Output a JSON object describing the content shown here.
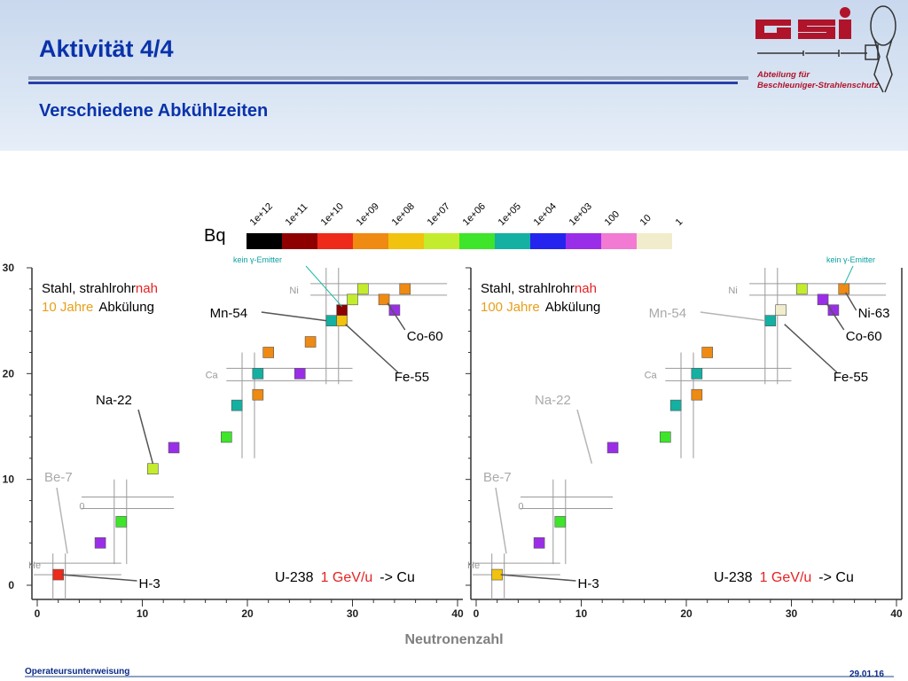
{
  "slide": {
    "title": "Aktivität  4/4",
    "subtitle": "Verschiedene Abkühlzeiten",
    "dept_line1": "Abteilung für",
    "dept_line2": "Beschleuniger-Strahlenschutz",
    "footer_left": "Operateursunterweisung",
    "footer_right": "29.01.16"
  },
  "colors": {
    "title": "#0a33aa",
    "highlight_red": "#e52222",
    "highlight_orange": "#e7a01a"
  },
  "legend": {
    "unit_label": "Bq",
    "gamma_note": "kein γ-Emitter",
    "bins": [
      {
        "label": "1e+12",
        "color": "#000000"
      },
      {
        "label": "1e+11",
        "color": "#8e0000"
      },
      {
        "label": "1e+10",
        "color": "#ee2a1a"
      },
      {
        "label": "1e+09",
        "color": "#ef8a12"
      },
      {
        "label": "1e+08",
        "color": "#f1c20e"
      },
      {
        "label": "1e+07",
        "color": "#c4ec2e"
      },
      {
        "label": "1e+06",
        "color": "#3ee52a"
      },
      {
        "label": "1e+05",
        "color": "#14b0a2"
      },
      {
        "label": "1e+04",
        "color": "#2424ee"
      },
      {
        "label": "1e+03",
        "color": "#9a2ee8"
      },
      {
        "label": "100",
        "color": "#f27ad2"
      },
      {
        "label": "10",
        "color": "#f1eccb"
      },
      {
        "label": "1",
        "color": "#ffffff"
      }
    ]
  },
  "chart_data": [
    {
      "type": "scatter",
      "xlabel": "Neutronenzahl",
      "xlim": [
        0,
        40
      ],
      "ylim": [
        0,
        30
      ],
      "xticks": [
        0,
        10,
        20,
        30,
        40
      ],
      "yticks": [
        0,
        10,
        20,
        30
      ],
      "panel_title_a": "Stahl, strahlrohr",
      "panel_title_b": "nah",
      "cooling_a": "10 Jahre",
      "cooling_b": "Abkülung",
      "reaction_a": "U-238",
      "reaction_b": "1 GeV/u",
      "reaction_c": "-> Cu",
      "element_labels": [
        {
          "text": "He",
          "n": 0,
          "z": 2
        },
        {
          "text": "0",
          "n": 4,
          "z": 8
        },
        {
          "text": "Ca",
          "n": 16,
          "z": 20
        },
        {
          "text": "Ni",
          "n": 24,
          "z": 28
        }
      ],
      "nuclide_labels": [
        {
          "text": "Stahl",
          "n": 0,
          "z": 0,
          "hidden": true
        }
      ],
      "annotations": [
        {
          "text": "H-3",
          "active": true
        },
        {
          "text": "Be-7",
          "active": false
        },
        {
          "text": "Na-22",
          "active": true
        },
        {
          "text": "Mn-54",
          "active": true
        },
        {
          "text": "Co-60",
          "active": true
        },
        {
          "text": "Fe-55",
          "active": true
        }
      ],
      "points": [
        {
          "n": 2,
          "z": 1,
          "color": "#ee2a1a"
        },
        {
          "n": 6,
          "z": 4,
          "color": "#9a2ee8"
        },
        {
          "n": 8,
          "z": 6,
          "color": "#3ee52a"
        },
        {
          "n": 11,
          "z": 11,
          "color": "#c4ec2e"
        },
        {
          "n": 13,
          "z": 13,
          "color": "#9a2ee8"
        },
        {
          "n": 18,
          "z": 14,
          "color": "#3ee52a"
        },
        {
          "n": 19,
          "z": 17,
          "color": "#14b0a2"
        },
        {
          "n": 21,
          "z": 18,
          "color": "#ef8a12"
        },
        {
          "n": 21,
          "z": 20,
          "color": "#14b0a2"
        },
        {
          "n": 22,
          "z": 22,
          "color": "#ef8a12"
        },
        {
          "n": 25,
          "z": 20,
          "color": "#9a2ee8"
        },
        {
          "n": 26,
          "z": 23,
          "color": "#ef8a12"
        },
        {
          "n": 28,
          "z": 25,
          "color": "#14b0a2"
        },
        {
          "n": 29,
          "z": 25,
          "color": "#f1c20e"
        },
        {
          "n": 29,
          "z": 26,
          "color": "#8e0000"
        },
        {
          "n": 30,
          "z": 27,
          "color": "#c4ec2e"
        },
        {
          "n": 31,
          "z": 28,
          "color": "#c4ec2e"
        },
        {
          "n": 33,
          "z": 27,
          "color": "#ef8a12"
        },
        {
          "n": 34,
          "z": 26,
          "color": "#9a2ee8"
        },
        {
          "n": 35,
          "z": 28,
          "color": "#ef8a12"
        }
      ]
    },
    {
      "type": "scatter",
      "xlabel": "Neutronenzahl",
      "xlim": [
        0,
        40
      ],
      "ylim": [
        0,
        30
      ],
      "xticks": [
        0,
        10,
        20,
        30,
        40
      ],
      "yticks": [
        0,
        10,
        20,
        30
      ],
      "panel_title_a": "Stahl, strahlrohr",
      "panel_title_b": "nah",
      "cooling_a": "100 Jahre",
      "cooling_b": "Abkülung",
      "reaction_a": "U-238",
      "reaction_b": "1 GeV/u",
      "reaction_c": "-> Cu",
      "element_labels": [
        {
          "text": "He",
          "n": 0,
          "z": 2
        },
        {
          "text": "0",
          "n": 4,
          "z": 8
        },
        {
          "text": "Ca",
          "n": 16,
          "z": 20
        },
        {
          "text": "Ni",
          "n": 24,
          "z": 28
        }
      ],
      "annotations": [
        {
          "text": "H-3",
          "active": true
        },
        {
          "text": "Be-7",
          "active": false
        },
        {
          "text": "Na-22",
          "active": false
        },
        {
          "text": "Mn-54",
          "active": false
        },
        {
          "text": "Co-60",
          "active": true
        },
        {
          "text": "Fe-55",
          "active": true
        },
        {
          "text": "Ni-63",
          "active": true
        }
      ],
      "points": [
        {
          "n": 2,
          "z": 1,
          "color": "#f1c20e"
        },
        {
          "n": 6,
          "z": 4,
          "color": "#9a2ee8"
        },
        {
          "n": 8,
          "z": 6,
          "color": "#3ee52a"
        },
        {
          "n": 13,
          "z": 13,
          "color": "#9a2ee8"
        },
        {
          "n": 18,
          "z": 14,
          "color": "#3ee52a"
        },
        {
          "n": 19,
          "z": 17,
          "color": "#14b0a2"
        },
        {
          "n": 21,
          "z": 18,
          "color": "#ef8a12"
        },
        {
          "n": 21,
          "z": 20,
          "color": "#14b0a2"
        },
        {
          "n": 22,
          "z": 22,
          "color": "#ef8a12"
        },
        {
          "n": 28,
          "z": 25,
          "color": "#14b0a2"
        },
        {
          "n": 29,
          "z": 26,
          "color": "#f1eccb"
        },
        {
          "n": 31,
          "z": 28,
          "color": "#c4ec2e"
        },
        {
          "n": 33,
          "z": 27,
          "color": "#9a2ee8"
        },
        {
          "n": 34,
          "z": 26,
          "color": "#9a2ee8"
        },
        {
          "n": 35,
          "z": 28,
          "color": "#ef8a12"
        }
      ]
    }
  ]
}
